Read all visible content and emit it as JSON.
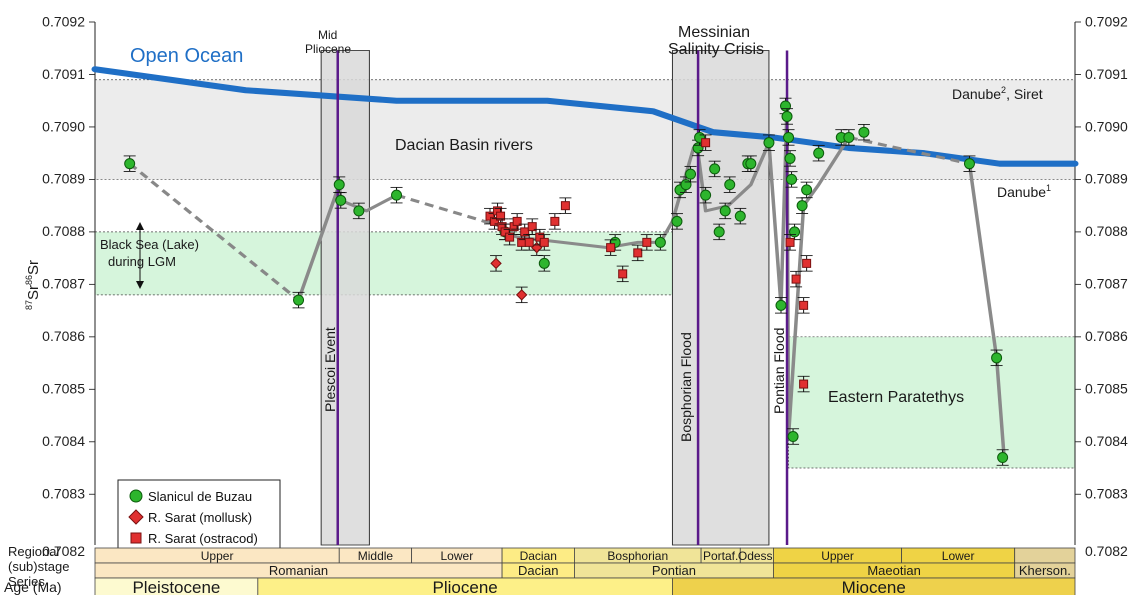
{
  "chart_data": {
    "type": "scatter",
    "xlabel": "Age (Ma)",
    "ylabel_main": "Sr",
    "ylabel_sup1": "87",
    "ylabel_sup2": "86",
    "xlim": [
      1.5,
      8.0
    ],
    "ylim": [
      0.7082,
      0.7092
    ],
    "x_ticks": [
      "1.5",
      "2",
      "2.5",
      "3",
      "3.5",
      "4",
      "4.5",
      "5",
      "5.5",
      "6",
      "6.5",
      "7",
      "7.5",
      "8"
    ],
    "y_ticks": [
      "0.7082",
      "0.7083",
      "0.7084",
      "0.7085",
      "0.7086",
      "0.7087",
      "0.7088",
      "0.7089",
      "0.7090",
      "0.7091",
      "0.7092"
    ],
    "open_ocean": {
      "label": "Open Ocean",
      "color": "#1f6fc6",
      "x": [
        1.5,
        2.5,
        3.5,
        4.5,
        5.2,
        5.6,
        6.0,
        6.5,
        7.0,
        7.5,
        8.0
      ],
      "y": [
        0.70911,
        0.70907,
        0.70905,
        0.70905,
        0.70903,
        0.70899,
        0.70898,
        0.70896,
        0.70895,
        0.70893,
        0.70893
      ]
    },
    "bands": [
      {
        "name": "Dacian Basin rivers",
        "y": [
          0.7089,
          0.70909
        ],
        "x": [
          1.5,
          8.0
        ],
        "color": "#ececec"
      },
      {
        "name": "Black Sea (Lake) during LGM",
        "line1": "Black Sea (Lake)",
        "line2": "during LGM",
        "y": [
          0.70868,
          0.7088
        ],
        "x": [
          1.5,
          5.33
        ],
        "color": "#d6f5dc"
      },
      {
        "name": "Eastern Paratethys",
        "y": [
          0.70835,
          0.7086
        ],
        "x": [
          6.1,
          8.0
        ],
        "color": "#d6f5dc"
      }
    ],
    "danube_labels": {
      "danube2_main": "Danube",
      "danube2_sup": "2",
      "danube2_tail": ", Siret",
      "danube1_main": "Danube",
      "danube1_sup": "1"
    },
    "events": [
      {
        "title_line1": "Mid",
        "title_line2": "Pliocene",
        "shade": [
          3.0,
          3.32
        ],
        "line_x": 3.11,
        "vertical_label": "Plescoi Event"
      },
      {
        "title_line1": "Messinian",
        "title_line2": "Salinity Crisis",
        "shade": [
          5.33,
          5.97
        ],
        "line_x": 5.5,
        "vertical_label": "Bosphorian Flood"
      },
      {
        "title_line1": "",
        "title_line2": "",
        "shade": null,
        "line_x": 6.09,
        "vertical_label": "Pontian Flood"
      }
    ],
    "series": [
      {
        "name": "Slanicul de Buzau",
        "marker": "circle",
        "color": "#2db52d",
        "x": [
          1.73,
          2.85,
          3.12,
          3.13,
          3.25,
          3.5,
          4.22,
          4.48,
          4.95,
          5.25,
          5.36,
          5.38,
          5.42,
          5.45,
          5.5,
          5.51,
          5.55,
          5.61,
          5.64,
          5.68,
          5.71,
          5.78,
          5.83,
          5.85,
          5.97,
          6.05,
          6.08,
          6.09,
          6.1,
          6.11,
          6.12,
          6.13,
          6.14,
          6.19,
          6.22,
          6.3,
          6.45,
          6.5,
          6.6,
          7.3,
          7.48,
          7.52
        ],
        "y": [
          0.70893,
          0.70867,
          0.70889,
          0.70886,
          0.70884,
          0.70887,
          0.7088,
          0.70874,
          0.70878,
          0.70878,
          0.70882,
          0.70888,
          0.70889,
          0.70891,
          0.70896,
          0.70898,
          0.70887,
          0.70892,
          0.7088,
          0.70884,
          0.70889,
          0.70883,
          0.70893,
          0.70893,
          0.70897,
          0.70866,
          0.70904,
          0.70902,
          0.70898,
          0.70894,
          0.7089,
          0.70841,
          0.7088,
          0.70885,
          0.70888,
          0.70895,
          0.70898,
          0.70898,
          0.70899,
          0.70893,
          0.70856,
          0.70837
        ]
      },
      {
        "name": "R. Sarat (mollusk)",
        "marker": "diamond",
        "color": "#e03030",
        "x": [
          4.16,
          4.33,
          4.43
        ],
        "y": [
          0.70874,
          0.70868,
          0.70877
        ]
      },
      {
        "name": "R. Sarat (ostracod)",
        "marker": "square",
        "color": "#e03030",
        "x": [
          4.12,
          4.15,
          4.17,
          4.19,
          4.2,
          4.22,
          4.25,
          4.28,
          4.3,
          4.33,
          4.35,
          4.38,
          4.4,
          4.45,
          4.48,
          4.55,
          4.62,
          4.92,
          5.0,
          5.1,
          5.16,
          5.55,
          6.11,
          6.15,
          6.2,
          6.2,
          6.22
        ],
        "y": [
          0.70883,
          0.70882,
          0.70884,
          0.70883,
          0.70881,
          0.7088,
          0.70879,
          0.70881,
          0.70882,
          0.70878,
          0.7088,
          0.70878,
          0.70881,
          0.70879,
          0.70878,
          0.70882,
          0.70885,
          0.70877,
          0.70872,
          0.70876,
          0.70878,
          0.70897,
          0.70878,
          0.70871,
          0.70866,
          0.70851,
          0.70874
        ]
      }
    ],
    "trend_solid": [
      [
        [
          2.85,
          0.70867
        ],
        [
          3.12,
          0.70889
        ],
        [
          3.13,
          0.70886
        ],
        [
          3.3,
          0.70884
        ],
        [
          3.5,
          0.70887
        ]
      ],
      [
        [
          4.2,
          0.7088
        ],
        [
          4.3,
          0.70879
        ],
        [
          4.6,
          0.70878
        ],
        [
          4.9,
          0.70877
        ],
        [
          5.1,
          0.70878
        ],
        [
          5.25,
          0.70878
        ],
        [
          5.33,
          0.70882
        ],
        [
          5.4,
          0.70889
        ],
        [
          5.47,
          0.70896
        ],
        [
          5.5,
          0.70895
        ],
        [
          5.55,
          0.70884
        ],
        [
          5.7,
          0.70885
        ],
        [
          5.85,
          0.70889
        ],
        [
          5.97,
          0.70897
        ],
        [
          6.05,
          0.70866
        ],
        [
          6.09,
          0.70904
        ],
        [
          6.1,
          0.70841
        ],
        [
          6.2,
          0.70885
        ],
        [
          6.3,
          0.70889
        ],
        [
          6.5,
          0.70898
        ]
      ],
      [
        [
          7.3,
          0.70893
        ],
        [
          7.48,
          0.70856
        ],
        [
          7.53,
          0.70837
        ]
      ]
    ],
    "trend_dashed": [
      [
        [
          1.73,
          0.70893
        ],
        [
          2.85,
          0.70867
        ]
      ],
      [
        [
          3.5,
          0.70887
        ],
        [
          4.2,
          0.70881
        ]
      ],
      [
        [
          6.5,
          0.70898
        ],
        [
          7.3,
          0.70893
        ]
      ]
    ],
    "strip": {
      "row_labels": [
        "Regional",
        "(sub)stage",
        "Series"
      ],
      "upper_substages": [
        {
          "label": "Upper",
          "x": [
            1.5,
            3.12
          ],
          "color": "#fbe7c3"
        },
        {
          "label": "Middle",
          "x": [
            3.12,
            3.6
          ],
          "color": "#fbe7c3"
        },
        {
          "label": "Lower",
          "x": [
            3.6,
            4.2
          ],
          "color": "#fbe7c3"
        },
        {
          "label": "Dacian",
          "x": [
            4.2,
            4.68
          ],
          "color": "#fdec85"
        },
        {
          "label": "Bosphorian",
          "x": [
            4.68,
            5.52
          ],
          "color": "#f0e498"
        },
        {
          "label": "Portaf.",
          "x": [
            5.52,
            5.78
          ],
          "color": "#f0e498"
        },
        {
          "label": "Odess.",
          "x": [
            5.78,
            6.0
          ],
          "color": "#f0e498"
        },
        {
          "label": "Upper",
          "x": [
            6.0,
            6.85
          ],
          "color": "#efd345"
        },
        {
          "label": "Lower",
          "x": [
            6.85,
            7.6
          ],
          "color": "#efd345"
        },
        {
          "label": "",
          "x": [
            7.6,
            8.0
          ],
          "color": "#e3d29a"
        }
      ],
      "stages": [
        {
          "label": "Romanian",
          "x": [
            1.5,
            4.2
          ],
          "color": "#fbe7c3"
        },
        {
          "label": "Dacian",
          "x": [
            4.2,
            4.68
          ],
          "color": "#fdec85"
        },
        {
          "label": "Pontian",
          "x": [
            4.68,
            6.0
          ],
          "color": "#f0e498"
        },
        {
          "label": "Maeotian",
          "x": [
            6.0,
            7.6
          ],
          "color": "#efd345"
        },
        {
          "label": "Kherson.",
          "x": [
            7.6,
            8.0
          ],
          "color": "#e3d29a"
        }
      ],
      "series_epochs": [
        {
          "label": "Pleistocene",
          "x": [
            1.5,
            2.58
          ],
          "color": "#fdfad0"
        },
        {
          "label": "Pliocene",
          "x": [
            2.58,
            5.33
          ],
          "color": "#fdf088"
        },
        {
          "label": "Miocene",
          "x": [
            5.33,
            8.0
          ],
          "color": "#eed14c"
        }
      ]
    }
  }
}
